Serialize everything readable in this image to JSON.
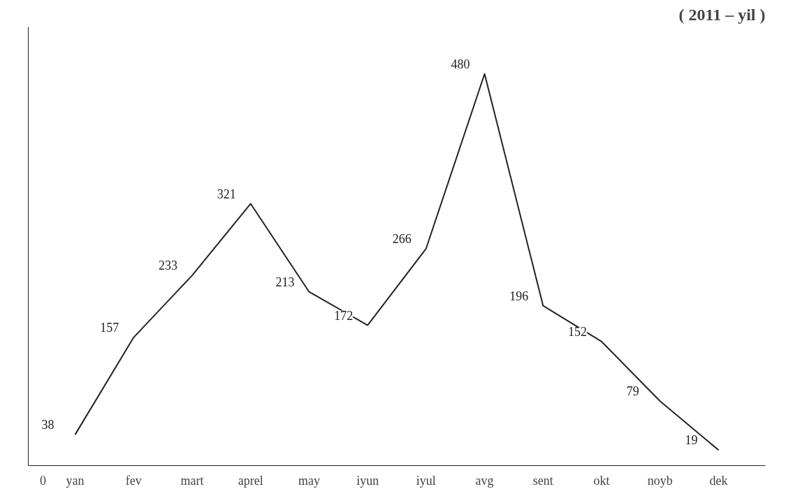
{
  "chart_data": {
    "type": "line",
    "title": "( 2011 – yil )",
    "categories": [
      "yan",
      "fev",
      "mart",
      "aprel",
      "may",
      "iyun",
      "iyul",
      "avg",
      "sent",
      "okt",
      "noyb",
      "dek"
    ],
    "series": [
      {
        "color": "#222222",
        "values": [
          38,
          157,
          233,
          321,
          213,
          172,
          266,
          480,
          196,
          152,
          79,
          19
        ]
      }
    ],
    "annotations": [
      "0"
    ],
    "data_labels": true,
    "grid": false,
    "marker": "none",
    "line_style": "solid"
  }
}
